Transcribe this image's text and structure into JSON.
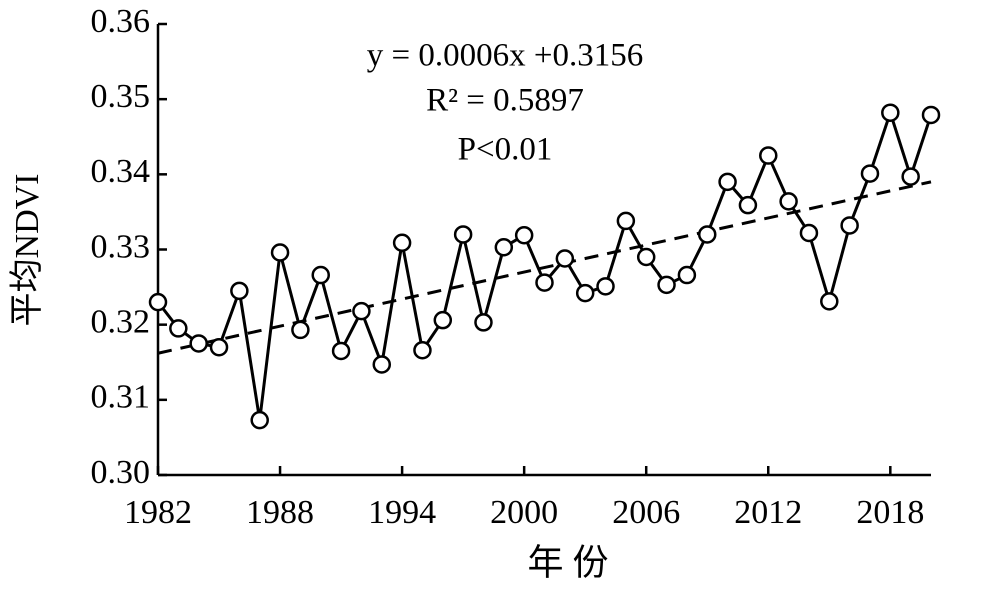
{
  "chart_data": {
    "type": "line",
    "x": [
      1982,
      1983,
      1984,
      1985,
      1986,
      1987,
      1988,
      1989,
      1990,
      1991,
      1992,
      1993,
      1994,
      1995,
      1996,
      1997,
      1998,
      1999,
      2000,
      2001,
      2002,
      2003,
      2004,
      2005,
      2006,
      2007,
      2008,
      2009,
      2010,
      2011,
      2012,
      2013,
      2014,
      2015,
      2016,
      2017,
      2018,
      2019,
      2020
    ],
    "series": [
      {
        "color": "#000000",
        "values": [
          0.323,
          0.3195,
          0.3175,
          0.317,
          0.3245,
          0.3073,
          0.3296,
          0.3193,
          0.3266,
          0.3165,
          0.3218,
          0.3147,
          0.3309,
          0.3166,
          0.3206,
          0.332,
          0.3203,
          0.3303,
          0.3319,
          0.3256,
          0.3288,
          0.3242,
          0.3251,
          0.3338,
          0.329,
          0.3253,
          0.3266,
          0.332,
          0.339,
          0.3359,
          0.3425,
          0.3364,
          0.3322,
          0.3231,
          0.3332,
          0.3401,
          0.3482,
          0.3397,
          0.3479
        ]
      }
    ],
    "trend": {
      "x": [
        1982,
        2020
      ],
      "values": [
        0.3162,
        0.339
      ]
    },
    "annotations": [
      "y = 0.0006x +0.3156",
      "R² = 0.5897",
      "P<0.01"
    ],
    "xlabel": "年 份",
    "ylabel": "平均NDVI",
    "xlim": [
      1982,
      2020
    ],
    "xticks": [
      1982,
      1988,
      1994,
      2000,
      2006,
      2012,
      2018
    ],
    "ylim": [
      0.3,
      0.36
    ],
    "yticks": [
      {
        "value": 0.3,
        "label": "0.30"
      },
      {
        "value": 0.31,
        "label": "0.31"
      },
      {
        "value": 0.32,
        "label": "0.32"
      },
      {
        "value": 0.33,
        "label": "0.33"
      },
      {
        "value": 0.34,
        "label": "0.34"
      },
      {
        "value": 0.35,
        "label": "0.35"
      },
      {
        "value": 0.36,
        "label": "0.36"
      }
    ]
  }
}
